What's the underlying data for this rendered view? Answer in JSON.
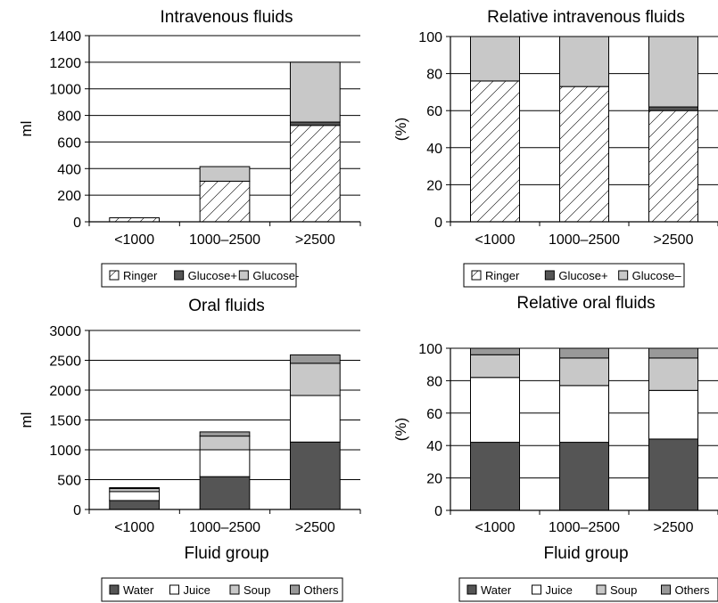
{
  "chart_data": [
    {
      "type": "bar",
      "stacked": true,
      "title": "Intravenous fluids",
      "xlabel": "",
      "ylabel": "ml",
      "ylim": [
        0,
        1400
      ],
      "yticks": [
        0,
        200,
        400,
        600,
        800,
        1000,
        1200,
        1400
      ],
      "grid": true,
      "categories": [
        "<1000",
        "1000–2500",
        ">2500"
      ],
      "series": [
        {
          "name": "Ringer",
          "values": [
            30,
            305,
            725
          ],
          "color": "#ffffff",
          "pattern": "hatch"
        },
        {
          "name": "Glucose+",
          "values": [
            0,
            0,
            25
          ],
          "color": "#555555"
        },
        {
          "name": "Glucose-",
          "values": [
            0,
            110,
            450
          ],
          "color": "#c8c8c8"
        }
      ],
      "legend": "bottom"
    },
    {
      "type": "bar",
      "stacked": true,
      "title": "Relative intravenous fluids",
      "xlabel": "",
      "ylabel": "(%)",
      "ylim": [
        0,
        100
      ],
      "yticks": [
        0,
        20,
        40,
        60,
        80,
        100
      ],
      "grid": true,
      "categories": [
        "<1000",
        "1000–2500",
        ">2500"
      ],
      "series": [
        {
          "name": "Ringer",
          "values": [
            76,
            73,
            60
          ],
          "color": "#ffffff",
          "pattern": "hatch"
        },
        {
          "name": "Glucose+",
          "values": [
            0,
            0,
            2
          ],
          "color": "#555555"
        },
        {
          "name": "Glucose–",
          "values": [
            24,
            27,
            38
          ],
          "color": "#c8c8c8"
        }
      ],
      "legend": "bottom"
    },
    {
      "type": "bar",
      "stacked": true,
      "title": "Oral fluids",
      "xlabel": "Fluid group",
      "ylabel": "ml",
      "ylim": [
        0,
        3000
      ],
      "yticks": [
        0,
        500,
        1000,
        1500,
        2000,
        2500,
        3000
      ],
      "grid": true,
      "categories": [
        "<1000",
        "1000–2500",
        ">2500"
      ],
      "series": [
        {
          "name": "Water",
          "values": [
            150,
            550,
            1130
          ],
          "color": "#555555"
        },
        {
          "name": "Juice",
          "values": [
            150,
            450,
            780
          ],
          "color": "#ffffff"
        },
        {
          "name": "Soup",
          "values": [
            50,
            230,
            540
          ],
          "color": "#c8c8c8"
        },
        {
          "name": "Others",
          "values": [
            15,
            70,
            140
          ],
          "color": "#999999"
        }
      ],
      "legend": "bottom"
    },
    {
      "type": "bar",
      "stacked": true,
      "title": "Relative oral fluids",
      "xlabel": "Fluid group",
      "ylabel": "(%)",
      "ylim": [
        0,
        100
      ],
      "yticks": [
        0,
        20,
        40,
        60,
        80,
        100
      ],
      "grid": true,
      "categories": [
        "<1000",
        "1000–2500",
        ">2500"
      ],
      "series": [
        {
          "name": "Water",
          "values": [
            42,
            42,
            44
          ],
          "color": "#555555"
        },
        {
          "name": "Juice",
          "values": [
            40,
            35,
            30
          ],
          "color": "#ffffff"
        },
        {
          "name": "Soup",
          "values": [
            14,
            17,
            20
          ],
          "color": "#c8c8c8"
        },
        {
          "name": "Others",
          "values": [
            4,
            6,
            6
          ],
          "color": "#999999"
        }
      ],
      "legend": "bottom"
    }
  ]
}
